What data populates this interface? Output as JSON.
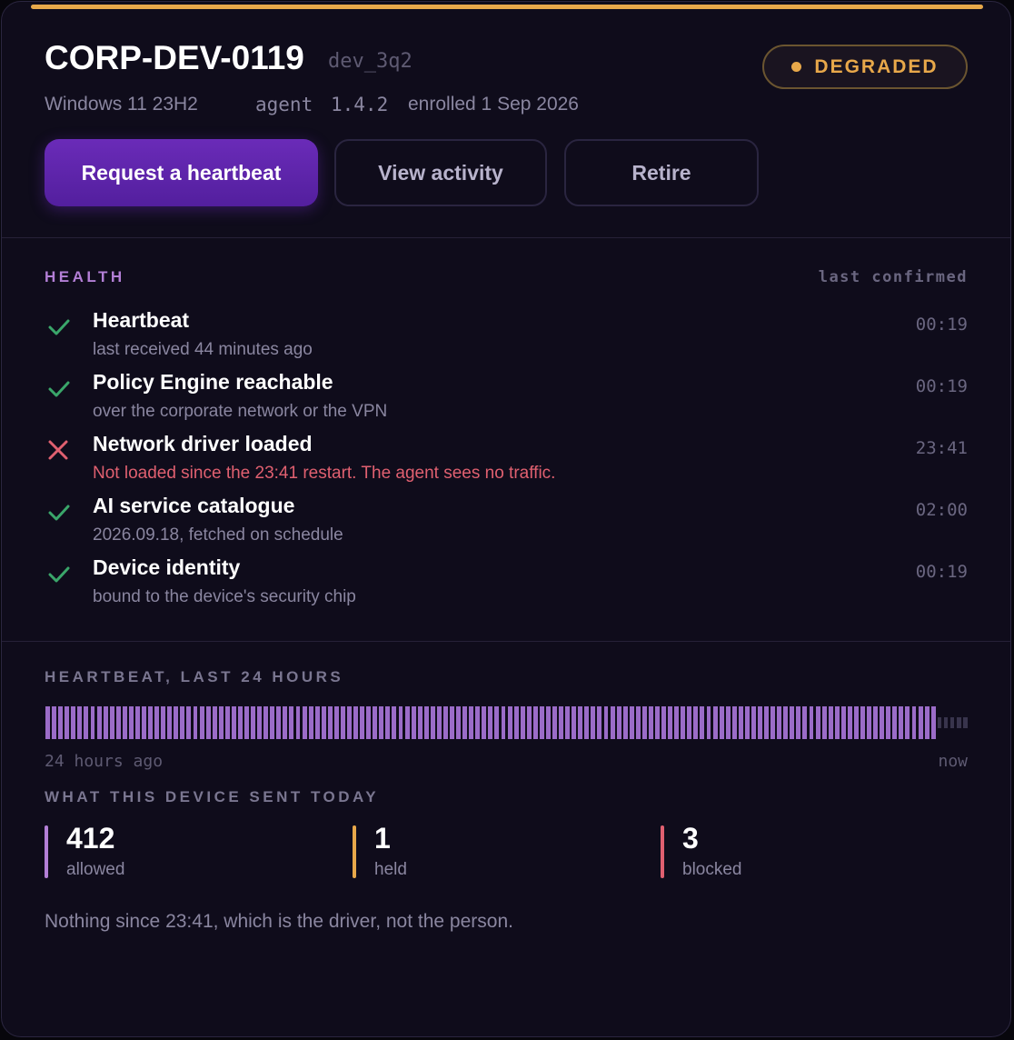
{
  "header": {
    "hostname": "CORP-DEV-0119",
    "device_id": "dev_3q2",
    "os": "Windows 11 23H2",
    "agent_label": "agent",
    "agent_version": "1.4.2",
    "enrolled": "enrolled 1 Sep 2026",
    "status": "DEGRADED"
  },
  "actions": [
    "Request a heartbeat",
    "View activity",
    "Retire"
  ],
  "health": {
    "title": "HEALTH",
    "column": "last confirmed",
    "checks": [
      {
        "name": "Heartbeat",
        "detail": "last received 44 minutes ago",
        "time": "00:19",
        "ok": true
      },
      {
        "name": "Policy Engine reachable",
        "detail": "over the corporate network or the VPN",
        "time": "00:19",
        "ok": true
      },
      {
        "name": "Network driver loaded",
        "detail": "Not loaded since the 23:41 restart. The agent sees no traffic.",
        "time": "23:41",
        "ok": false
      },
      {
        "name": "AI service catalogue",
        "detail": "2026.09.18, fetched on schedule",
        "time": "02:00",
        "ok": true
      },
      {
        "name": "Device identity",
        "detail": "bound to the device's security chip",
        "time": "00:19",
        "ok": true
      }
    ]
  },
  "heartbeat": {
    "title": "HEARTBEAT, LAST 24 HOURS",
    "start_label": "24 hours ago",
    "end_label": "now",
    "slots": [
      1,
      1,
      1,
      1,
      1,
      1,
      1,
      1,
      1,
      1,
      1,
      1,
      1,
      1,
      1,
      1,
      1,
      1,
      1,
      1,
      1,
      1,
      1,
      1,
      1,
      1,
      1,
      1,
      1,
      1,
      1,
      1,
      1,
      1,
      1,
      1,
      1,
      1,
      1,
      1,
      1,
      1,
      1,
      1,
      1,
      1,
      1,
      1,
      1,
      1,
      1,
      1,
      1,
      1,
      1,
      1,
      1,
      1,
      1,
      1,
      1,
      1,
      1,
      1,
      1,
      1,
      1,
      1,
      1,
      1,
      1,
      1,
      1,
      1,
      1,
      1,
      1,
      1,
      1,
      1,
      1,
      1,
      1,
      1,
      1,
      1,
      1,
      1,
      1,
      1,
      1,
      1,
      1,
      1,
      1,
      1,
      1,
      1,
      1,
      1,
      1,
      1,
      1,
      1,
      1,
      1,
      1,
      1,
      1,
      1,
      1,
      1,
      1,
      1,
      1,
      1,
      1,
      1,
      1,
      1,
      1,
      1,
      1,
      1,
      1,
      1,
      1,
      1,
      1,
      1,
      1,
      1,
      1,
      1,
      1,
      1,
      1,
      1,
      1,
      0,
      0,
      0,
      0,
      0
    ]
  },
  "sent": {
    "title": "WHAT THIS DEVICE SENT TODAY",
    "stats": [
      {
        "value": 412,
        "label": "allowed",
        "color": "#b37fd6"
      },
      {
        "value": 1,
        "label": "held",
        "color": "#e8a84a"
      },
      {
        "value": 3,
        "label": "blocked",
        "color": "#e06070"
      }
    ],
    "note": "Nothing since 23:41, which is the driver, not the person."
  }
}
